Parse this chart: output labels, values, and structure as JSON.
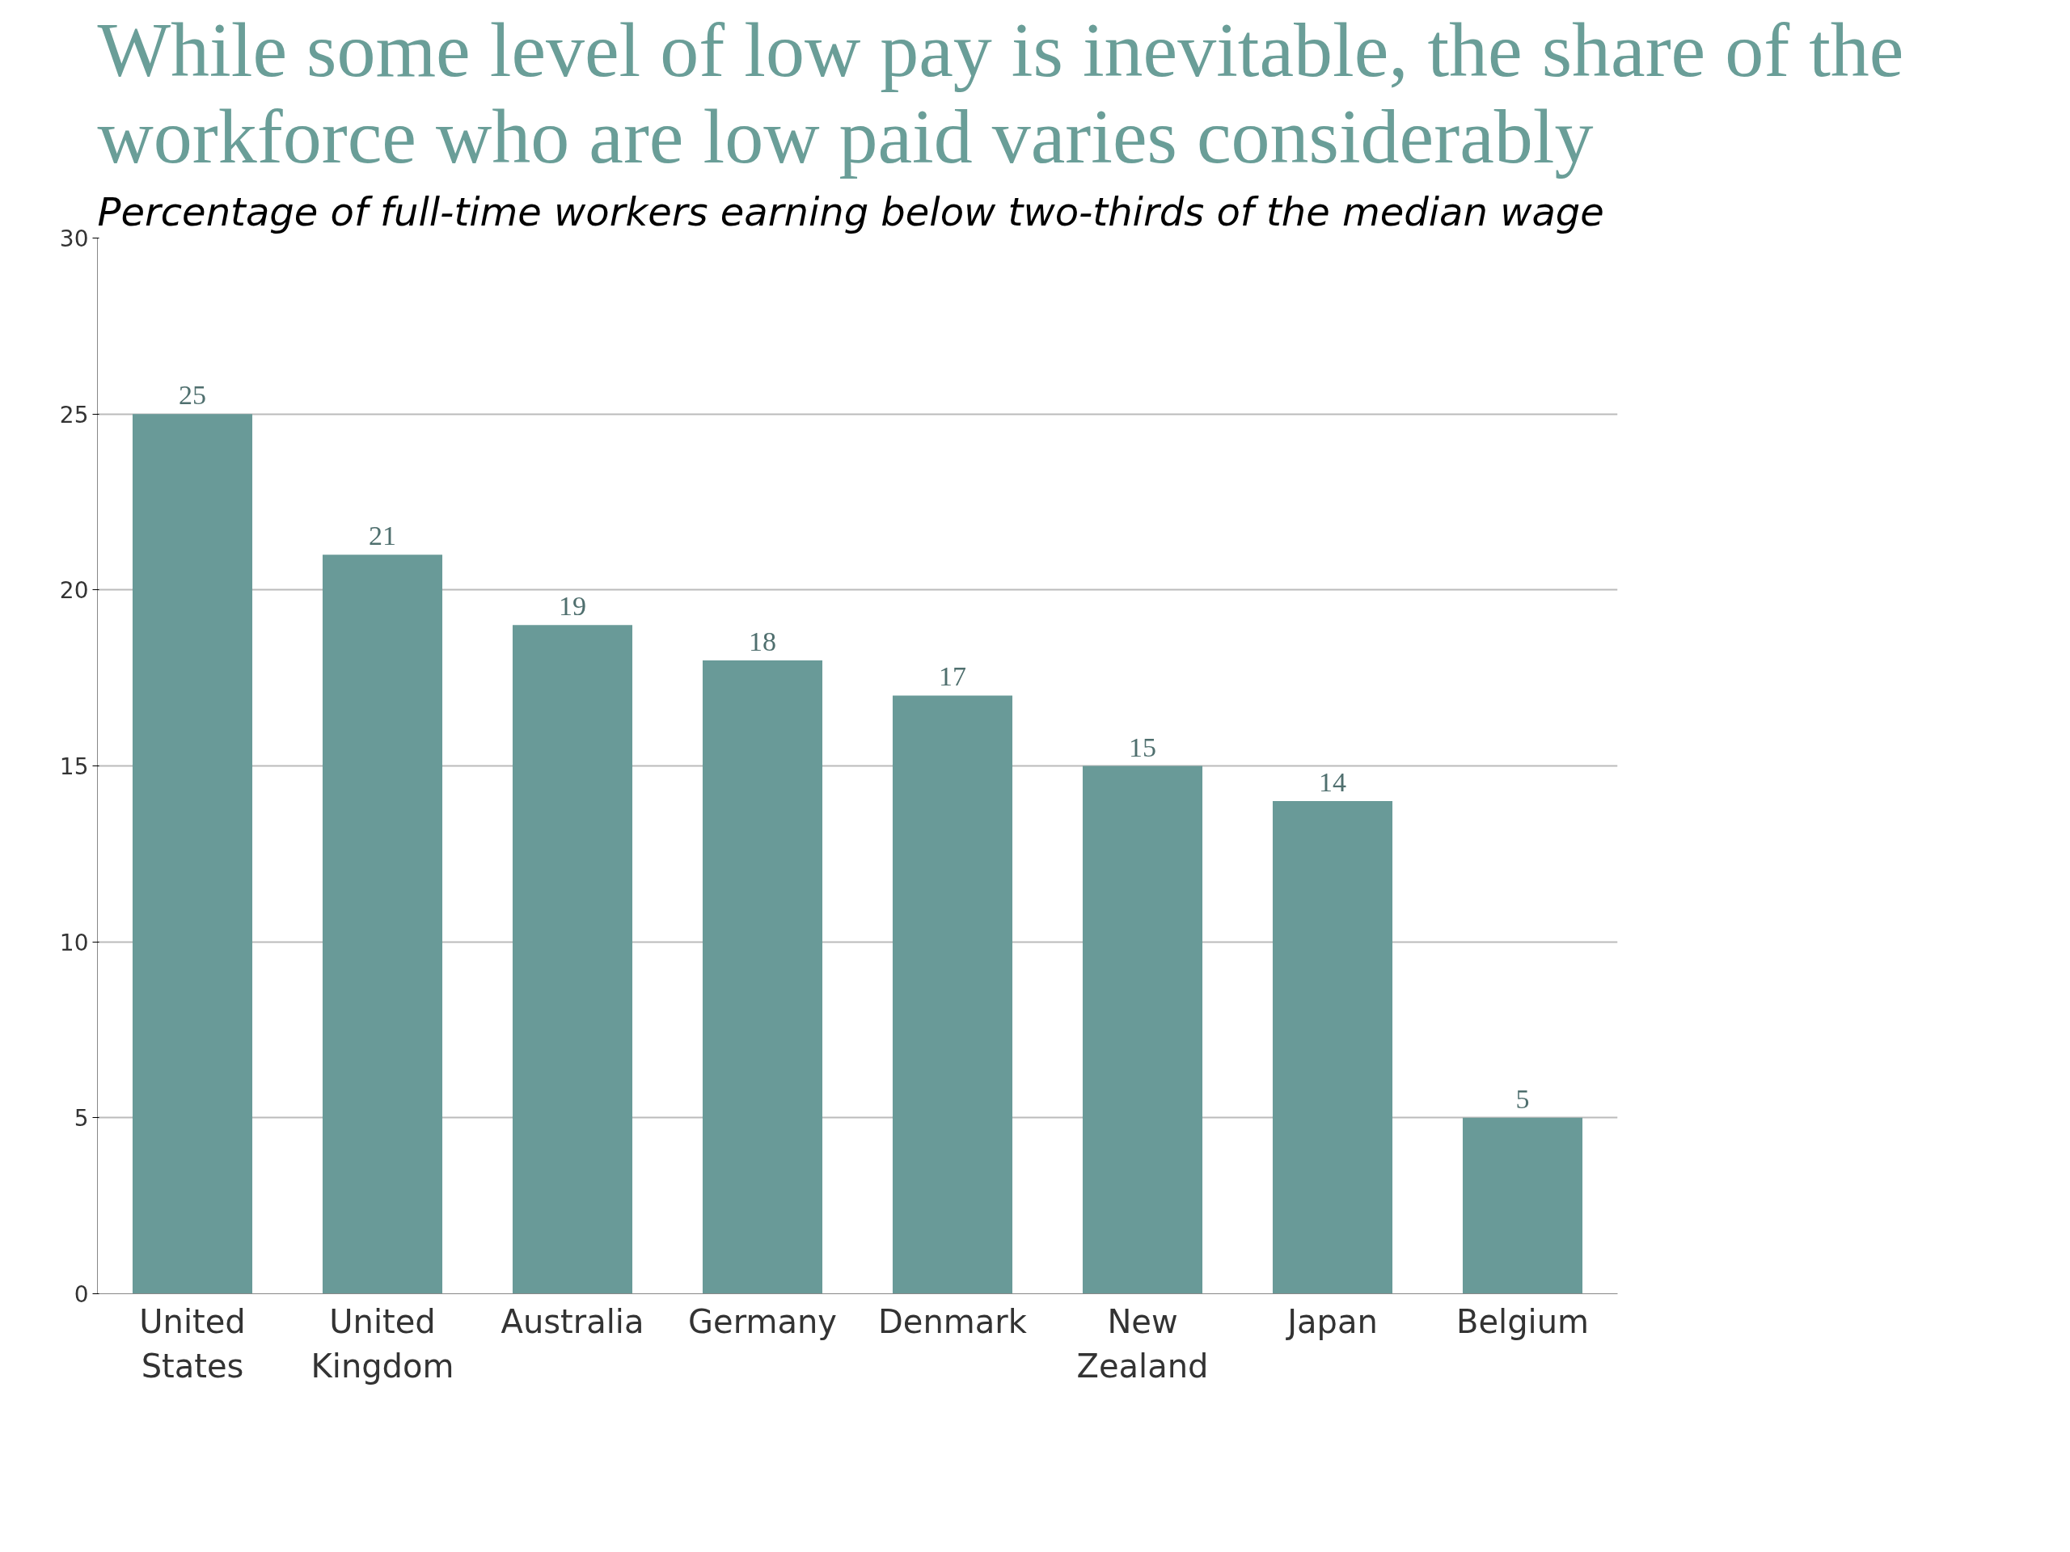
{
  "chart_data": {
    "type": "bar",
    "title": "While some level of low pay is inevitable, the share of the\nworkforce who are low paid varies considerably",
    "subtitle": "Percentage of full-time workers earning below two-thirds of the median wage",
    "categories": [
      "United States",
      "United Kingdom",
      "Australia",
      "Germany",
      "Denmark",
      "New Zealand",
      "Japan",
      "Belgium"
    ],
    "values": [
      25,
      21,
      19,
      18,
      17,
      15,
      14,
      5
    ],
    "color": "#699a98",
    "ylim": [
      0,
      30
    ],
    "yticks": [
      0,
      5,
      10,
      15,
      20,
      25,
      30
    ],
    "grid": "y",
    "data_labels": true
  }
}
